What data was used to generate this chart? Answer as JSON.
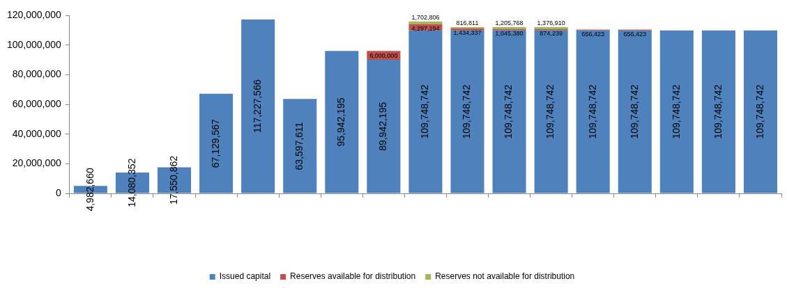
{
  "chart_data": {
    "type": "bar",
    "stacked": true,
    "categories": [
      null,
      null,
      null,
      null,
      null,
      null,
      null,
      null,
      null,
      null,
      null,
      null,
      null,
      null,
      null,
      null,
      null
    ],
    "series": [
      {
        "name": "Issued capital",
        "color": "#4f81bd",
        "values": [
          4982660,
          14080352,
          17550862,
          67129567,
          117227566,
          63597611,
          95942195,
          89942195,
          109748742,
          109748742,
          109748742,
          109748742,
          109748742,
          109748742,
          109748742,
          109748742,
          109748742
        ],
        "value_labels": [
          "4,982,660",
          "14,080,352",
          "17,550,862",
          "67,129,567",
          "117,227,566",
          "63,597,611",
          "95,942,195",
          "89,942,195",
          "109,748,742",
          "109,748,742",
          "109,748,742",
          "109,748,742",
          "109,748,742",
          "109,748,742",
          "109,748,742",
          "109,748,742",
          "109,748,742"
        ]
      },
      {
        "name": "Reserves available for distribution",
        "color": "#c0504d",
        "values": [
          null,
          null,
          null,
          null,
          null,
          null,
          null,
          6000000,
          4297194,
          1434337,
          1045380,
          874239,
          656423,
          656423,
          null,
          null,
          null
        ],
        "value_labels": [
          null,
          null,
          null,
          null,
          null,
          null,
          null,
          "6,000,000",
          "4,297,194",
          "1,434,337",
          "1,045,380",
          "874,239",
          "656,423",
          "656,423",
          null,
          null,
          null
        ]
      },
      {
        "name": "Reserves not available for distribution",
        "color": "#9bbb59",
        "values": [
          null,
          null,
          null,
          null,
          null,
          null,
          null,
          null,
          1702806,
          816811,
          1205768,
          1376910,
          null,
          null,
          null,
          null,
          null
        ],
        "value_labels": [
          null,
          null,
          null,
          null,
          null,
          null,
          null,
          null,
          "1,702,806",
          "816,811",
          "1,205,768",
          "1,376,910",
          null,
          null,
          null,
          null,
          null
        ]
      }
    ],
    "ylim": [
      0,
      120000000
    ],
    "yticks": [
      0,
      {
        "value": 20000000,
        "label": "20,000,000"
      },
      {
        "value": 40000000,
        "label": "40,000,000"
      },
      {
        "value": 60000000,
        "label": "60,000,000"
      },
      {
        "value": 80000000,
        "label": "80,000,000"
      },
      {
        "value": 100000000,
        "label": "100,000,000"
      },
      {
        "value": 120000000,
        "label": "120,000,000"
      }
    ],
    "grid": false,
    "legend": "bottom"
  }
}
